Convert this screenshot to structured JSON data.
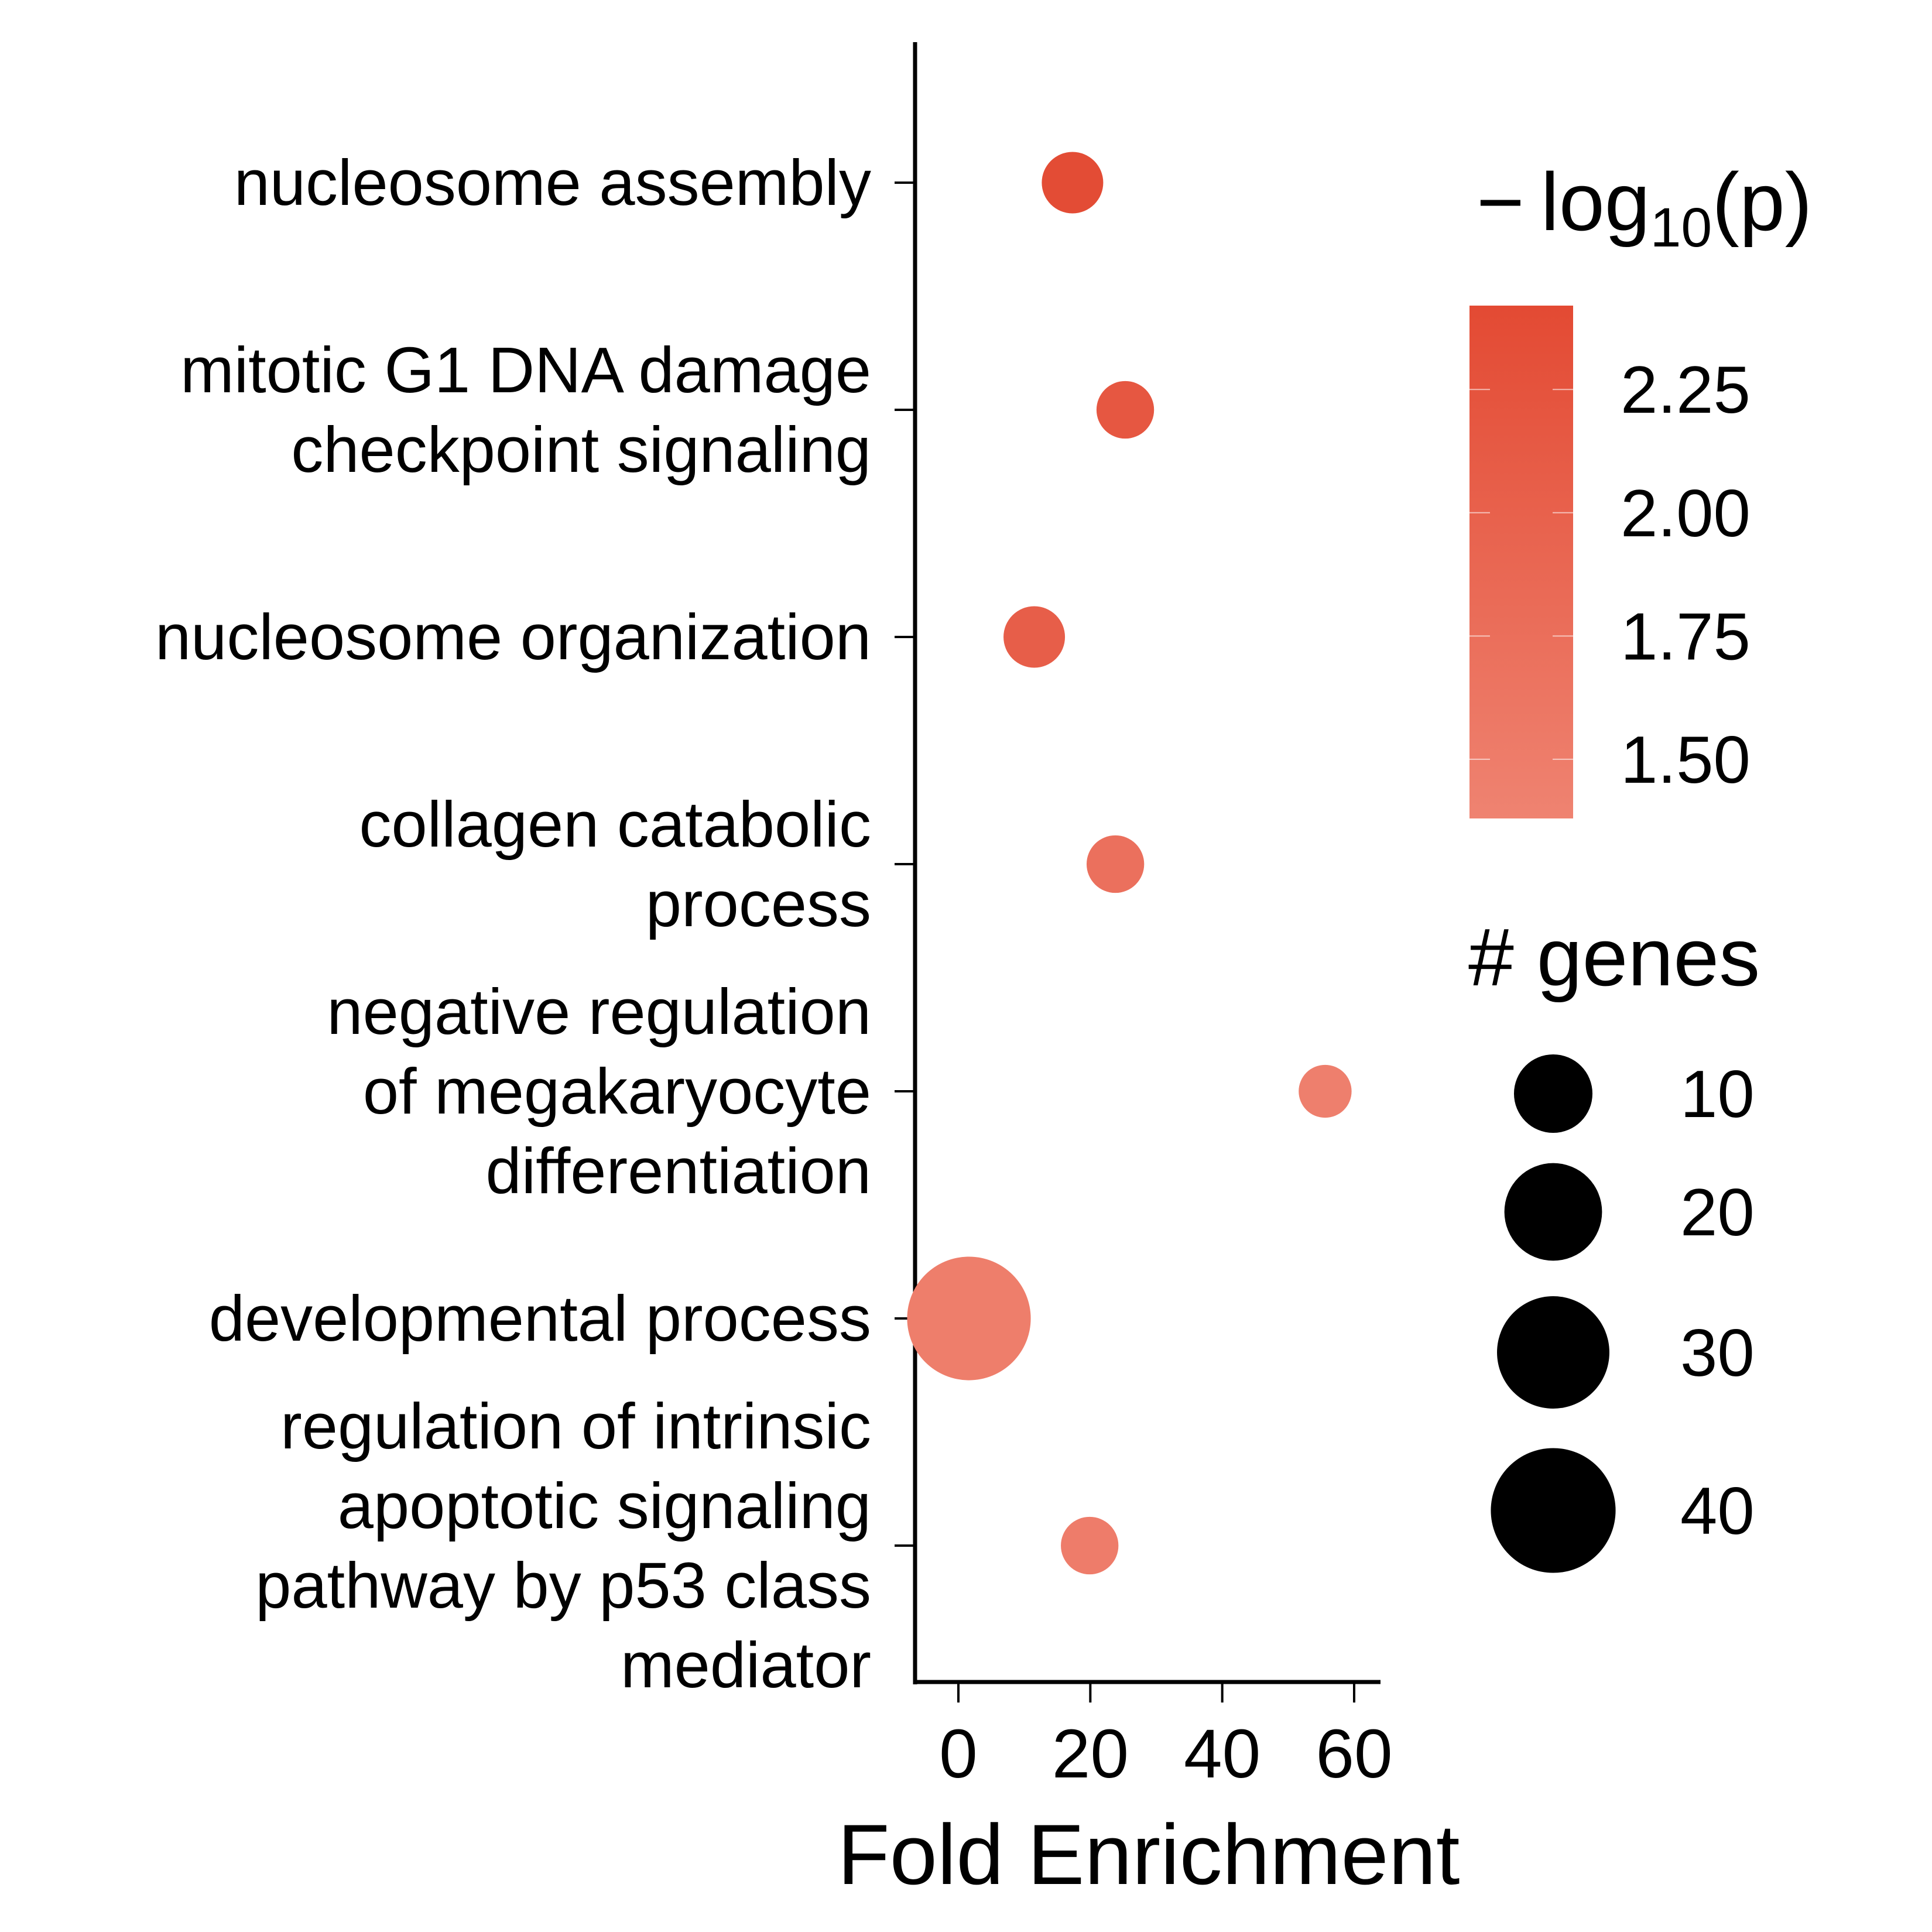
{
  "chart_data": {
    "type": "scatter",
    "xlabel": "Fold Enrichment",
    "xticks": [
      0,
      20,
      40,
      60
    ],
    "xlim": [
      -6.5,
      64.5
    ],
    "categories": [
      [
        "nucleosome assembly"
      ],
      [
        "mitotic G1 DNA damage",
        "checkpoint signaling"
      ],
      [
        "nucleosome organization"
      ],
      [
        "collagen catabolic",
        "process"
      ],
      [
        "negative regulation",
        "of megakaryocyte",
        "differentiation"
      ],
      [
        "developmental process"
      ],
      [
        "regulation of intrinsic",
        "apoptotic signaling",
        "pathway by p53 class",
        "mediator"
      ]
    ],
    "points": [
      {
        "fold_enrichment": 17.3,
        "neg_log10_p": 2.38,
        "genes": 4
      },
      {
        "fold_enrichment": 25.3,
        "neg_log10_p": 2.18,
        "genes": 3
      },
      {
        "fold_enrichment": 11.5,
        "neg_log10_p": 2.05,
        "genes": 4
      },
      {
        "fold_enrichment": 23.8,
        "neg_log10_p": 1.72,
        "genes": 3
      },
      {
        "fold_enrichment": 55.6,
        "neg_log10_p": 1.45,
        "genes": 2
      },
      {
        "fold_enrichment": 1.6,
        "neg_log10_p": 1.48,
        "genes": 39
      },
      {
        "fold_enrichment": 19.9,
        "neg_log10_p": 1.5,
        "genes": 3
      }
    ],
    "color_legend": {
      "title_minus": "−",
      "title_log": "log",
      "title_sub": "10",
      "title_p": "(p)",
      "ticks": [
        2.25,
        2.0,
        1.75,
        1.5
      ],
      "tick_labels": [
        "2.25",
        "2.00",
        "1.75",
        "1.50"
      ],
      "range": [
        1.38,
        2.42
      ],
      "color_high": "#e34a33",
      "color_low": "#ef8371"
    },
    "size_legend": {
      "title": "# genes",
      "values": [
        10,
        20,
        30,
        40
      ],
      "labels": [
        "10",
        "20",
        "30",
        "40"
      ],
      "color": "#000000"
    }
  }
}
